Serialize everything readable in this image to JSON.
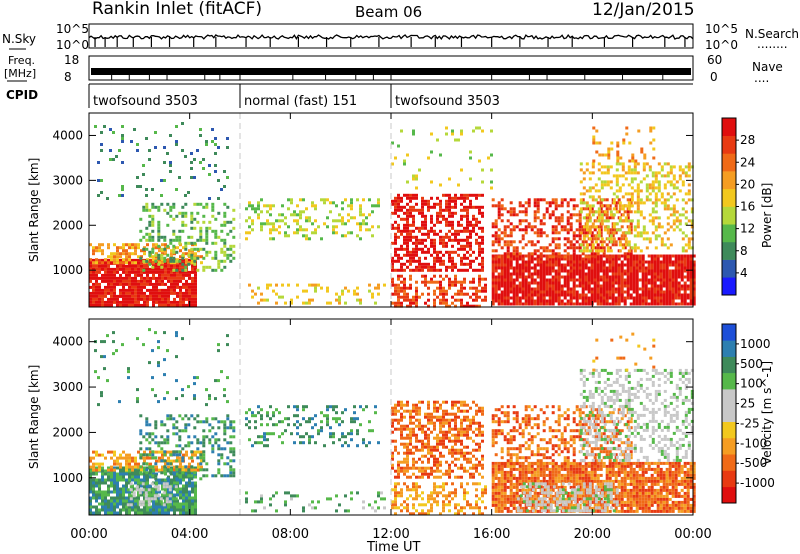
{
  "header": {
    "site": "Rankin Inlet (fitACF)",
    "beam": "Beam 06",
    "date": "12/Jan/2015"
  },
  "strip_labels": {
    "nsky": "N.Sky",
    "nsearch": "N.Search",
    "nsearch_dots": "........",
    "freq_top": "Freq.",
    "freq_unit": "[MHz]",
    "nave": "Nave",
    "nave_dots": "....",
    "cpid": "CPID"
  },
  "strip_ticks": {
    "noise_left_top": "10^5",
    "noise_left_bottom": "10^0",
    "noise_right_top": "10^5",
    "noise_right_bottom": "10^0",
    "freq_left_top": "18",
    "freq_left_bottom": "8",
    "nave_right_top": "60",
    "nave_right_bottom": "0"
  },
  "cpid_segments": [
    {
      "label": "twofsound 3503",
      "start_hour": 0,
      "end_hour": 6
    },
    {
      "label": "normal (fast) 151",
      "start_hour": 6,
      "end_hour": 12
    },
    {
      "label": "twofsound 3503",
      "start_hour": 12,
      "end_hour": 24
    }
  ],
  "x_axis": {
    "label": "Time UT",
    "ticks": [
      "00:00",
      "04:00",
      "08:00",
      "12:00",
      "16:00",
      "20:00",
      "00:00"
    ],
    "tick_hours": [
      0,
      4,
      8,
      12,
      16,
      20,
      24
    ]
  },
  "chart_data": [
    {
      "type": "heatmap",
      "title": "Power",
      "xlabel": "Time UT",
      "ylabel": "Slant Range [km]",
      "xlim_hours": [
        0,
        24
      ],
      "ylim_km": [
        180,
        4500
      ],
      "yticks": [
        1000,
        2000,
        3000,
        4000
      ],
      "colorbar": {
        "label": "Power [dB]",
        "ticks": [
          "28",
          "24",
          "20",
          "16",
          "12",
          "8",
          "4"
        ],
        "colors": [
          "#1a1aff",
          "#2d58b0",
          "#3e8a5a",
          "#56b84a",
          "#b5d83a",
          "#f2c81e",
          "#f59d22",
          "#f06a17",
          "#e83a12",
          "#e00e0e"
        ]
      },
      "regions": [
        {
          "t0": 0.0,
          "t1": 4.2,
          "r0": 200,
          "r1": 1250,
          "level": 9,
          "density": 0.9
        },
        {
          "t0": 0.0,
          "t1": 4.5,
          "r0": 1150,
          "r1": 1600,
          "level": 6,
          "density": 0.55
        },
        {
          "t0": 2.0,
          "t1": 5.8,
          "r0": 1000,
          "r1": 2500,
          "level": 3,
          "density": 0.35
        },
        {
          "t0": 0.2,
          "t1": 5.5,
          "r0": 2600,
          "r1": 4300,
          "level": 2,
          "density": 0.08
        },
        {
          "t0": 6.2,
          "t1": 11.5,
          "r0": 1700,
          "r1": 2600,
          "level": 4,
          "density": 0.25
        },
        {
          "t0": 6.2,
          "t1": 11.8,
          "r0": 250,
          "r1": 700,
          "level": 5,
          "density": 0.2
        },
        {
          "t0": 12.0,
          "t1": 15.6,
          "r0": 1000,
          "r1": 2700,
          "level": 9,
          "density": 0.55
        },
        {
          "t0": 12.0,
          "t1": 15.8,
          "r0": 200,
          "r1": 900,
          "level": 8,
          "density": 0.45
        },
        {
          "t0": 12.0,
          "t1": 16.0,
          "r0": 2800,
          "r1": 4200,
          "level": 4,
          "density": 0.08
        },
        {
          "t0": 16.0,
          "t1": 24.0,
          "r0": 250,
          "r1": 1350,
          "level": 9,
          "density": 0.9
        },
        {
          "t0": 16.0,
          "t1": 21.5,
          "r0": 1300,
          "r1": 2600,
          "level": 8,
          "density": 0.45
        },
        {
          "t0": 19.5,
          "t1": 24.0,
          "r0": 1400,
          "r1": 3400,
          "level": 5,
          "density": 0.4
        },
        {
          "t0": 20.0,
          "t1": 22.5,
          "r0": 3400,
          "r1": 4200,
          "level": 6,
          "density": 0.15
        }
      ]
    },
    {
      "type": "heatmap",
      "title": "Velocity",
      "xlabel": "Time UT",
      "ylabel": "Slant Range [km]",
      "xlim_hours": [
        0,
        24
      ],
      "ylim_km": [
        180,
        4500
      ],
      "yticks": [
        1000,
        2000,
        3000,
        4000
      ],
      "colorbar": {
        "label": "Velocity [m s^-1]",
        "ticks": [
          "1000",
          "500",
          "100",
          "25",
          "-25",
          "-100",
          "-500",
          "-1000"
        ],
        "colors": [
          "#e00e0e",
          "#e83a12",
          "#f06a17",
          "#f59d22",
          "#f2c81e",
          "#c8c8c8",
          "#c8c8c8",
          "#56b84a",
          "#3e8a5a",
          "#2d7fb0",
          "#1d4fd8"
        ]
      },
      "regions": [
        {
          "t0": 0.0,
          "t1": 4.2,
          "r0": 200,
          "r1": 1250,
          "level": 8,
          "density": 0.85
        },
        {
          "t0": 0.0,
          "t1": 4.5,
          "r0": 1150,
          "r1": 1600,
          "level": 3,
          "density": 0.55
        },
        {
          "t0": 2.0,
          "t1": 5.8,
          "r0": 1000,
          "r1": 2400,
          "level": 8,
          "density": 0.35
        },
        {
          "t0": 1.5,
          "t1": 3.5,
          "r0": 400,
          "r1": 900,
          "level": 6,
          "density": 0.4
        },
        {
          "t0": 0.2,
          "t1": 5.5,
          "r0": 2600,
          "r1": 4300,
          "level": 8,
          "density": 0.06
        },
        {
          "t0": 6.2,
          "t1": 11.5,
          "r0": 1700,
          "r1": 2600,
          "level": 8,
          "density": 0.25
        },
        {
          "t0": 6.2,
          "t1": 11.8,
          "r0": 250,
          "r1": 700,
          "level": 7,
          "density": 0.2
        },
        {
          "t0": 12.0,
          "t1": 15.6,
          "r0": 1000,
          "r1": 2700,
          "level": 2,
          "density": 0.55
        },
        {
          "t0": 12.0,
          "t1": 15.8,
          "r0": 200,
          "r1": 900,
          "level": 3,
          "density": 0.45
        },
        {
          "t0": 16.0,
          "t1": 24.0,
          "r0": 250,
          "r1": 1350,
          "level": 2,
          "density": 0.85
        },
        {
          "t0": 17.0,
          "t1": 21.0,
          "r0": 300,
          "r1": 900,
          "level": 6,
          "density": 0.5
        },
        {
          "t0": 16.0,
          "t1": 21.5,
          "r0": 1300,
          "r1": 2600,
          "level": 2,
          "density": 0.45
        },
        {
          "t0": 19.5,
          "t1": 24.0,
          "r0": 1400,
          "r1": 3400,
          "level": 6,
          "density": 0.4
        },
        {
          "t0": 20.0,
          "t1": 22.5,
          "r0": 3400,
          "r1": 4200,
          "level": 3,
          "density": 0.12
        }
      ]
    }
  ]
}
